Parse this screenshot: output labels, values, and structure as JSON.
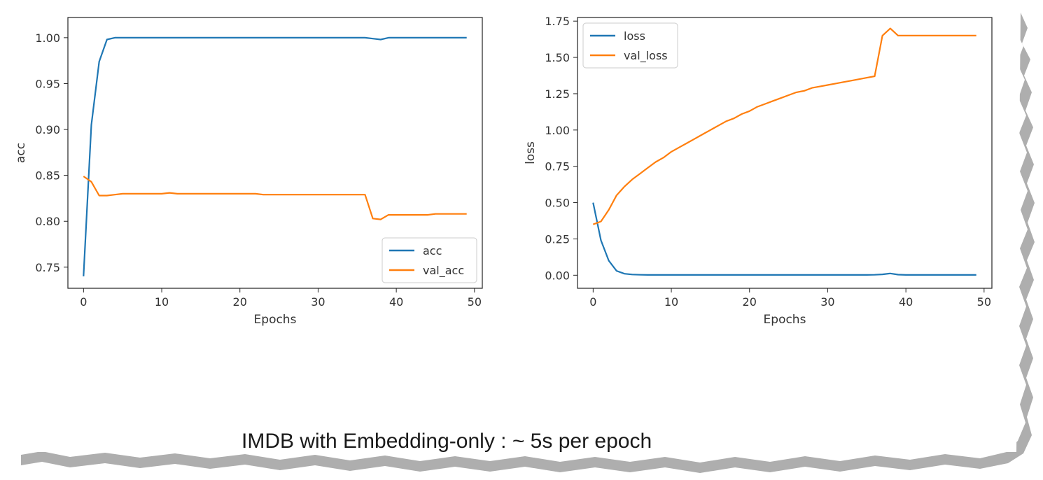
{
  "caption": "IMDB with Embedding-only : ~ 5s per epoch",
  "colors": {
    "series1": "#1f77b4",
    "series2": "#ff7f0e"
  },
  "chart_data": [
    {
      "type": "line",
      "title": "",
      "xlabel": "Epochs",
      "ylabel": "acc",
      "xlim": [
        -2,
        51
      ],
      "ylim": [
        0.727,
        1.022
      ],
      "xticks": [
        0,
        10,
        20,
        30,
        40,
        50
      ],
      "yticks": [
        0.75,
        0.8,
        0.85,
        0.9,
        0.95,
        1.0
      ],
      "ytick_labels": [
        "0.75",
        "0.80",
        "0.85",
        "0.90",
        "0.95",
        "1.00"
      ],
      "grid": false,
      "legend": "lower-right",
      "x": [
        0,
        1,
        2,
        3,
        4,
        5,
        6,
        7,
        8,
        9,
        10,
        11,
        12,
        13,
        14,
        15,
        16,
        17,
        18,
        19,
        20,
        21,
        22,
        23,
        24,
        25,
        26,
        27,
        28,
        29,
        30,
        31,
        32,
        33,
        34,
        35,
        36,
        37,
        38,
        39,
        40,
        41,
        42,
        43,
        44,
        45,
        46,
        47,
        48,
        49
      ],
      "series": [
        {
          "name": "acc",
          "values": [
            0.74,
            0.905,
            0.974,
            0.998,
            1.0,
            1.0,
            1.0,
            1.0,
            1.0,
            1.0,
            1.0,
            1.0,
            1.0,
            1.0,
            1.0,
            1.0,
            1.0,
            1.0,
            1.0,
            1.0,
            1.0,
            1.0,
            1.0,
            1.0,
            1.0,
            1.0,
            1.0,
            1.0,
            1.0,
            1.0,
            1.0,
            1.0,
            1.0,
            1.0,
            1.0,
            1.0,
            1.0,
            0.999,
            0.998,
            1.0,
            1.0,
            1.0,
            1.0,
            1.0,
            1.0,
            1.0,
            1.0,
            1.0,
            1.0,
            1.0
          ]
        },
        {
          "name": "val_acc",
          "values": [
            0.849,
            0.843,
            0.828,
            0.828,
            0.829,
            0.83,
            0.83,
            0.83,
            0.83,
            0.83,
            0.83,
            0.831,
            0.83,
            0.83,
            0.83,
            0.83,
            0.83,
            0.83,
            0.83,
            0.83,
            0.83,
            0.83,
            0.83,
            0.829,
            0.829,
            0.829,
            0.829,
            0.829,
            0.829,
            0.829,
            0.829,
            0.829,
            0.829,
            0.829,
            0.829,
            0.829,
            0.829,
            0.803,
            0.802,
            0.807,
            0.807,
            0.807,
            0.807,
            0.807,
            0.807,
            0.808,
            0.808,
            0.808,
            0.808,
            0.808
          ]
        }
      ]
    },
    {
      "type": "line",
      "title": "",
      "xlabel": "Epochs",
      "ylabel": "loss",
      "xlim": [
        -2,
        51
      ],
      "ylim": [
        -0.09,
        1.775
      ],
      "xticks": [
        0,
        10,
        20,
        30,
        40,
        50
      ],
      "yticks": [
        0.0,
        0.25,
        0.5,
        0.75,
        1.0,
        1.25,
        1.5,
        1.75
      ],
      "ytick_labels": [
        "0.00",
        "0.25",
        "0.50",
        "0.75",
        "1.00",
        "1.25",
        "1.50",
        "1.75"
      ],
      "grid": false,
      "legend": "upper-left",
      "x": [
        0,
        1,
        2,
        3,
        4,
        5,
        6,
        7,
        8,
        9,
        10,
        11,
        12,
        13,
        14,
        15,
        16,
        17,
        18,
        19,
        20,
        21,
        22,
        23,
        24,
        25,
        26,
        27,
        28,
        29,
        30,
        31,
        32,
        33,
        34,
        35,
        36,
        37,
        38,
        39,
        40,
        41,
        42,
        43,
        44,
        45,
        46,
        47,
        48,
        49
      ],
      "series": [
        {
          "name": "loss",
          "values": [
            0.5,
            0.24,
            0.1,
            0.03,
            0.01,
            0.005,
            0.003,
            0.002,
            0.002,
            0.002,
            0.002,
            0.002,
            0.002,
            0.002,
            0.002,
            0.002,
            0.002,
            0.002,
            0.002,
            0.002,
            0.002,
            0.002,
            0.002,
            0.002,
            0.002,
            0.002,
            0.002,
            0.002,
            0.002,
            0.002,
            0.002,
            0.002,
            0.002,
            0.002,
            0.002,
            0.002,
            0.003,
            0.006,
            0.012,
            0.004,
            0.002,
            0.002,
            0.002,
            0.002,
            0.002,
            0.002,
            0.002,
            0.002,
            0.002,
            0.002
          ]
        },
        {
          "name": "val_loss",
          "values": [
            0.35,
            0.37,
            0.45,
            0.55,
            0.61,
            0.66,
            0.7,
            0.74,
            0.78,
            0.81,
            0.85,
            0.88,
            0.91,
            0.94,
            0.97,
            1.0,
            1.03,
            1.06,
            1.08,
            1.11,
            1.13,
            1.16,
            1.18,
            1.2,
            1.22,
            1.24,
            1.26,
            1.27,
            1.29,
            1.3,
            1.31,
            1.32,
            1.33,
            1.34,
            1.35,
            1.36,
            1.37,
            1.65,
            1.7,
            1.65,
            1.65,
            1.65,
            1.65,
            1.65,
            1.65,
            1.65,
            1.65,
            1.65,
            1.65,
            1.65
          ]
        }
      ]
    }
  ]
}
